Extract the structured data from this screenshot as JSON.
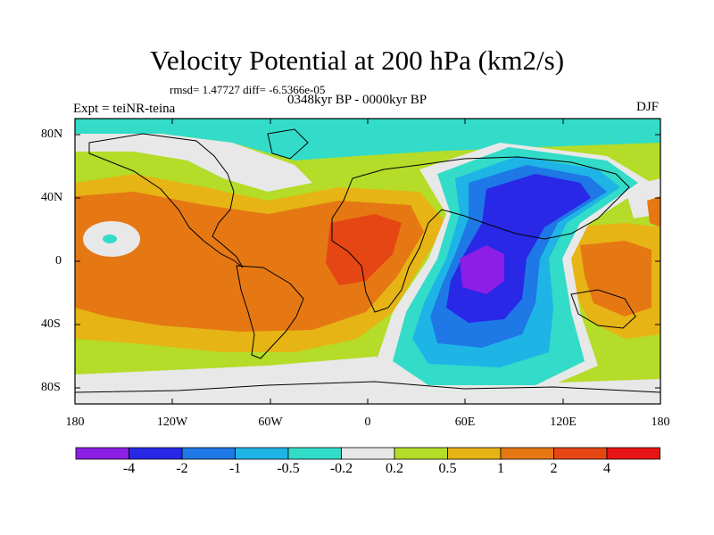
{
  "title": "Velocity Potential at 200 hPa (km2/s)",
  "rmsd_line": "rmsd= 1.47727 diff= -6.5366e-05",
  "period": "0348kyr BP - 0000kyr BP",
  "experiment": "Expt = teiNR-teina",
  "season": "DJF",
  "lat_labels": [
    "80N",
    "40N",
    "0",
    "40S",
    "80S"
  ],
  "lon_labels": [
    "180",
    "120W",
    "60W",
    "0",
    "60E",
    "120E",
    "180"
  ],
  "colorbar": {
    "labels": [
      "-4",
      "-2",
      "-1",
      "-0.5",
      "-0.2",
      "0.2",
      "0.5",
      "1",
      "2",
      "4"
    ],
    "colors": [
      "#8c1ee6",
      "#2828e6",
      "#1e78e6",
      "#1eb4e6",
      "#32dcc8",
      "#e8e8e8",
      "#b4dc28",
      "#e6b414",
      "#e67814",
      "#e64614",
      "#e61414"
    ]
  },
  "field_colors": {
    "neg4": "#8c1ee6",
    "neg2": "#2828e6",
    "neg1": "#1e78e6",
    "neg05": "#1eb4e6",
    "neg02": "#32dcc8",
    "neutral": "#e8e8e8",
    "pos02": "#b4dc28",
    "pos05": "#e6b414",
    "pos1": "#e67814",
    "pos2": "#e64614"
  }
}
